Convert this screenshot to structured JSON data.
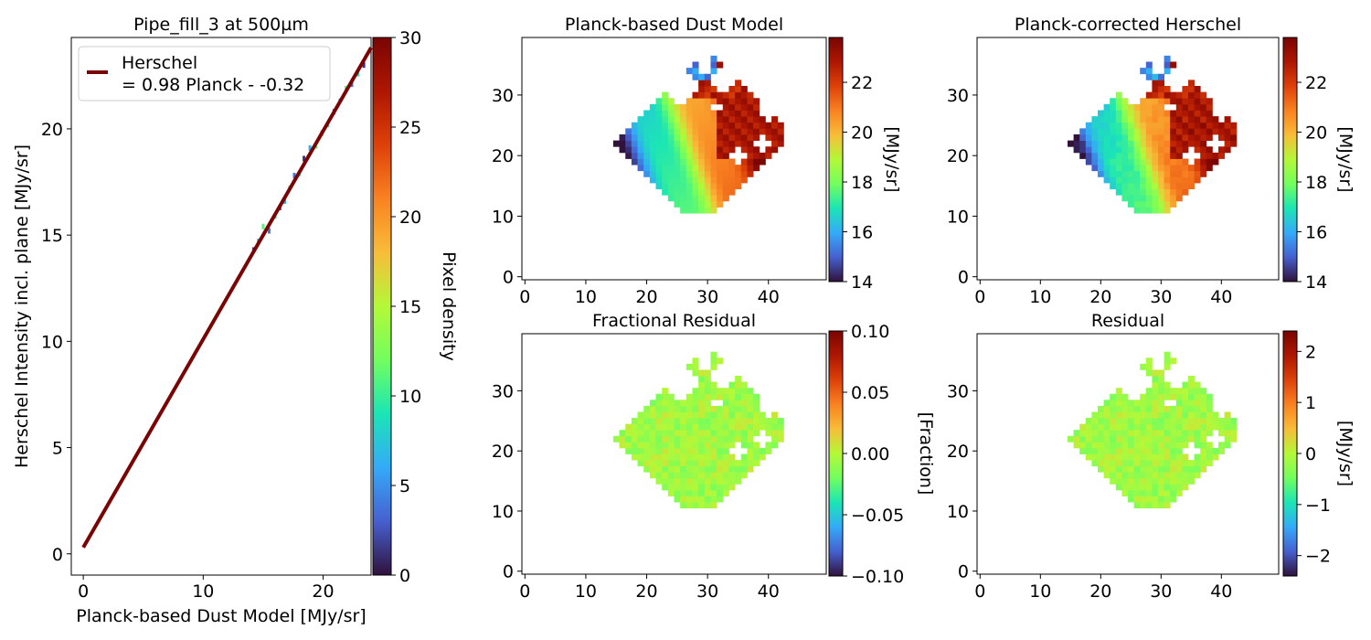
{
  "chart_data": [
    {
      "type": "scatter",
      "title": "Pipe_fill_3 at 500µm",
      "xlabel": "Planck-based Dust Model [MJy/sr]",
      "ylabel": "Herschel Intensity incl. plane [MJy/sr]",
      "xlim": [
        -1,
        24
      ],
      "ylim": [
        -1,
        24.3
      ],
      "xticks": [
        0,
        10,
        20
      ],
      "yticks": [
        0,
        5,
        10,
        15,
        20
      ],
      "fit_line": {
        "slope": 0.98,
        "intercept": -0.32,
        "x_range": [
          0,
          24
        ],
        "color": "#7a0403"
      },
      "legend": {
        "position": "upper-left",
        "entries": [
          {
            "line1": "Herschel",
            "line2": "= 0.98 Planck - -0.32"
          }
        ]
      },
      "density_points": [
        [
          14.2,
          14.3
        ],
        [
          14.6,
          14.7
        ],
        [
          15.0,
          15.4
        ],
        [
          15.5,
          15.2
        ],
        [
          16.0,
          15.9
        ],
        [
          16.4,
          16.3
        ],
        [
          16.8,
          16.6
        ],
        [
          17.2,
          17.2
        ],
        [
          17.6,
          17.8
        ],
        [
          18.0,
          17.9
        ],
        [
          18.4,
          18.6
        ],
        [
          18.9,
          19.1
        ],
        [
          19.4,
          19.2
        ],
        [
          19.9,
          19.8
        ],
        [
          20.4,
          20.2
        ],
        [
          20.9,
          20.8
        ],
        [
          21.4,
          21.3
        ],
        [
          21.9,
          21.9
        ],
        [
          22.4,
          22.1
        ],
        [
          22.9,
          22.6
        ],
        [
          23.4,
          23.0
        ]
      ],
      "colorbar": {
        "label": "Pixel density",
        "range": [
          0,
          30
        ],
        "ticks": [
          0,
          5,
          10,
          15,
          20,
          25,
          30
        ]
      }
    },
    {
      "type": "heatmap",
      "title": "Planck-based Dust Model",
      "xticks": [
        0,
        10,
        20,
        30,
        40
      ],
      "yticks": [
        0,
        10,
        20,
        30
      ],
      "xlim": [
        -0.5,
        49.5
      ],
      "ylim": [
        -0.5,
        39.5
      ],
      "colorbar": {
        "label": "[MJy/sr]",
        "range": [
          14,
          23.8
        ],
        "ticks": [
          14,
          16,
          18,
          20,
          22
        ]
      }
    },
    {
      "type": "heatmap",
      "title": "Planck-corrected Herschel",
      "xticks": [
        0,
        10,
        20,
        30,
        40
      ],
      "yticks": [
        0,
        10,
        20,
        30
      ],
      "xlim": [
        -0.5,
        49.5
      ],
      "ylim": [
        -0.5,
        39.5
      ],
      "colorbar": {
        "label": "[MJy/sr]",
        "range": [
          14,
          23.8
        ],
        "ticks": [
          14,
          16,
          18,
          20,
          22
        ]
      }
    },
    {
      "type": "heatmap",
      "title": "Fractional Residual",
      "xticks": [
        0,
        10,
        20,
        30,
        40
      ],
      "yticks": [
        0,
        10,
        20,
        30
      ],
      "xlim": [
        -0.5,
        49.5
      ],
      "ylim": [
        -0.5,
        39.5
      ],
      "colorbar": {
        "label": "[Fraction]",
        "range": [
          -0.1,
          0.1
        ],
        "ticks": [
          "0.10",
          "0.05",
          "0.00",
          "−0.05",
          "−0.10"
        ]
      }
    },
    {
      "type": "heatmap",
      "title": "Residual",
      "xticks": [
        0,
        10,
        20,
        30,
        40
      ],
      "yticks": [
        0,
        10,
        20,
        30
      ],
      "xlim": [
        -0.5,
        49.5
      ],
      "ylim": [
        -0.5,
        39.5
      ],
      "colorbar": {
        "label": "[MJy/sr]",
        "range": [
          -2.4,
          2.4
        ],
        "ticks": [
          "2",
          "1",
          "0",
          "−1",
          "−2"
        ]
      }
    }
  ],
  "colors": {
    "colormap": "turbo",
    "fit_line": "#7a0403"
  }
}
